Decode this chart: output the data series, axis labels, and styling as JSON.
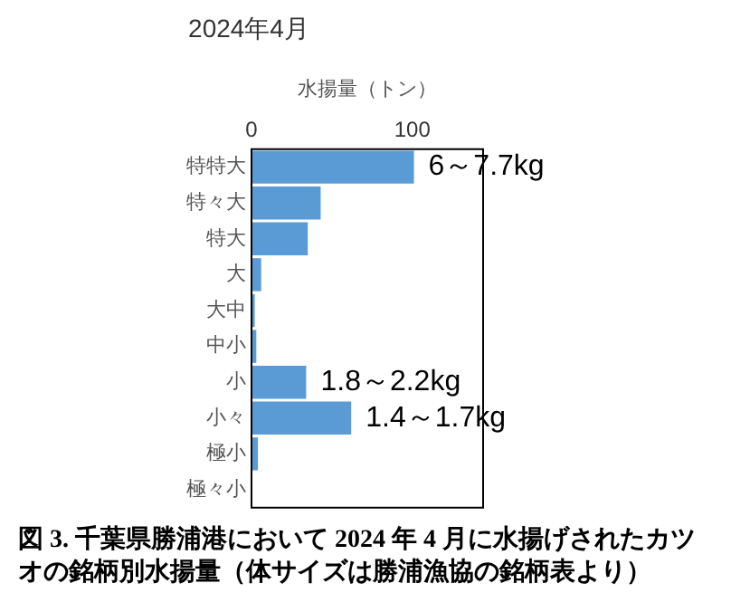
{
  "chart_data": {
    "type": "bar",
    "orientation": "horizontal",
    "title": "2024年4月",
    "xlabel": "水揚量（トン）",
    "categories": [
      "特特大",
      "特々大",
      "特大",
      "大",
      "大中",
      "中小",
      "小",
      "小々",
      "極小",
      "極々小"
    ],
    "values": [
      101,
      43,
      35,
      6,
      2,
      3,
      34,
      62,
      4,
      0
    ],
    "color": "#5b9bd5",
    "xlim": [
      0,
      144
    ],
    "xticks": [
      0,
      100
    ],
    "grid": false,
    "legend": false,
    "annotations": [
      {
        "text": "6～7.7kg",
        "x": 101,
        "y": "特特大"
      },
      {
        "text": "1.8～2.2kg",
        "x": 34,
        "y": "小"
      },
      {
        "text": "1.4～1.7kg",
        "x": 62,
        "y": "小々"
      },
      "図 3. 千葉県勝浦港において 2024 年 4 月に水揚げされたカツオの銘柄別水揚量（体サイズは勝浦漁協の銘柄表より）"
    ]
  }
}
